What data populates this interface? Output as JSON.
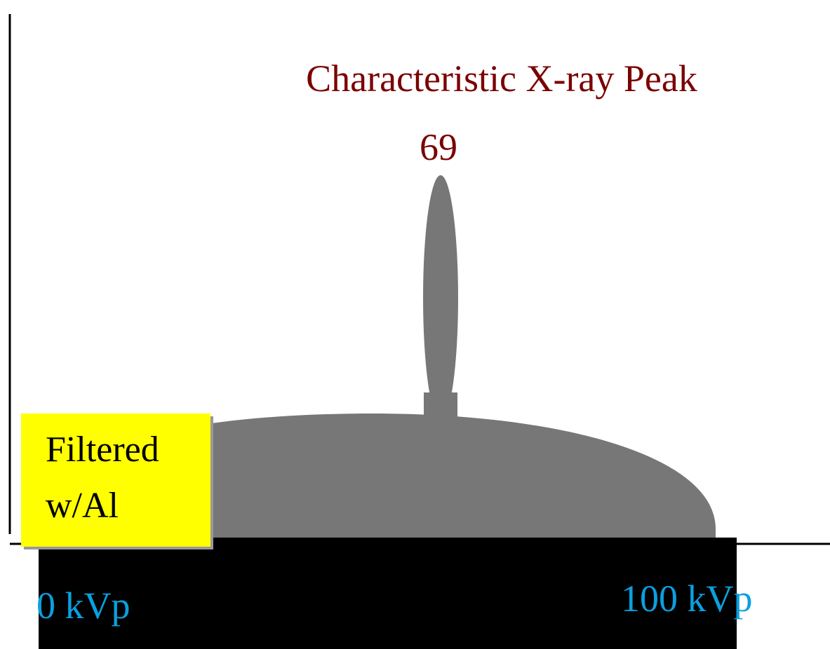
{
  "title": "Characteristic X-ray Peak",
  "peak_label": "69",
  "filter_note": {
    "line1": "Filtered",
    "line2": "w/Al"
  },
  "axis": {
    "min_label": "0 kVp",
    "max_label": "100 kVp"
  }
}
